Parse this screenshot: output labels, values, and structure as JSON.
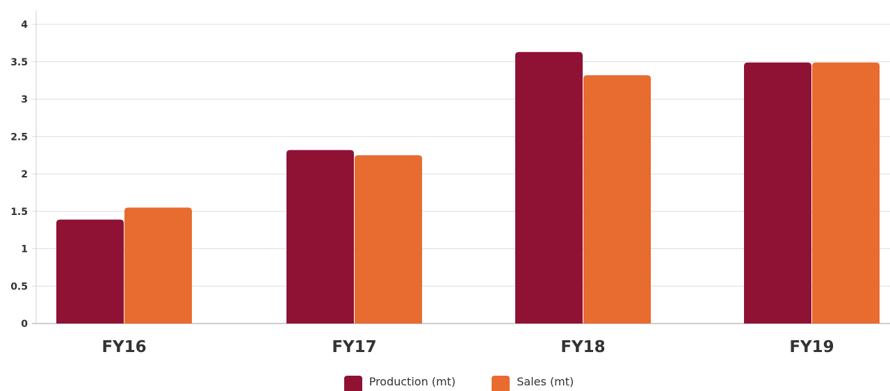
{
  "chart_data": {
    "type": "bar",
    "categories": [
      "FY16",
      "FY17",
      "FY18",
      "FY19"
    ],
    "series": [
      {
        "name": "Production (mt)",
        "color": "#8f1234",
        "values": [
          1.39,
          2.32,
          3.63,
          3.49
        ]
      },
      {
        "name": "Sales (mt)",
        "color": "#e86b2f",
        "values": [
          1.55,
          2.25,
          3.32,
          3.49
        ]
      }
    ],
    "yticks": [
      "0",
      "0.5",
      "1",
      "1.5",
      "2",
      "2.5",
      "3",
      "3.5",
      "4"
    ],
    "ylim": [
      0,
      4
    ],
    "grid": true,
    "legend_position": "bottom-center"
  }
}
